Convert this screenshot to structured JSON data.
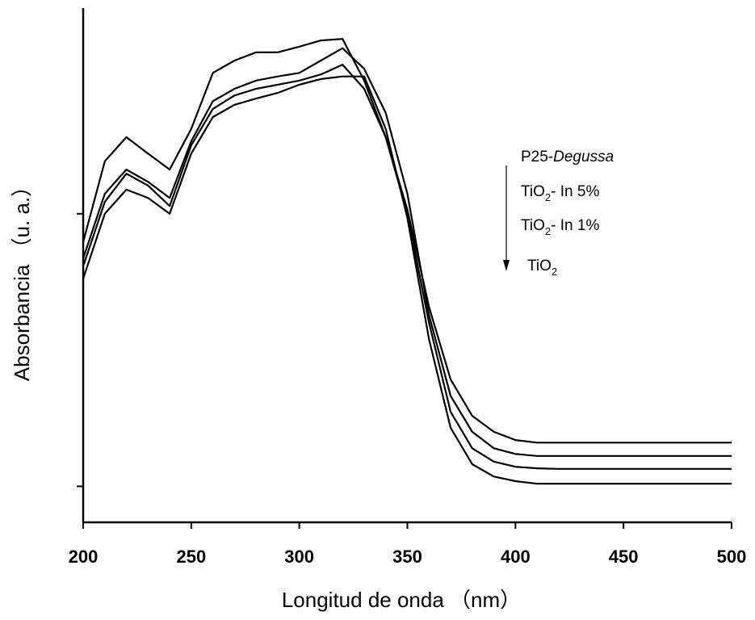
{
  "chart_data": {
    "type": "line",
    "x_label": "Longitud de onda （nm）",
    "y_label": "Absorbancia （u. a.）",
    "x": [
      200,
      210,
      220,
      230,
      240,
      250,
      260,
      270,
      280,
      290,
      300,
      310,
      320,
      330,
      340,
      350,
      360,
      370,
      380,
      390,
      400,
      410,
      420,
      430,
      440,
      450,
      460,
      470,
      480,
      490,
      500
    ],
    "series": [
      {
        "name": "P25-Degussa",
        "color": "#000000",
        "values": [
          0.545,
          0.702,
          0.749,
          0.717,
          0.686,
          0.765,
          0.874,
          0.898,
          0.914,
          0.914,
          0.925,
          0.937,
          0.94,
          0.859,
          0.749,
          0.608,
          0.419,
          0.278,
          0.207,
          0.176,
          0.16,
          0.155,
          0.155,
          0.155,
          0.155,
          0.155,
          0.155,
          0.155,
          0.155,
          0.155,
          0.155
        ]
      },
      {
        "name": "TiO2- In 5%",
        "color": "#000000",
        "values": [
          0.513,
          0.639,
          0.686,
          0.662,
          0.631,
          0.741,
          0.819,
          0.843,
          0.859,
          0.867,
          0.874,
          0.898,
          0.922,
          0.882,
          0.796,
          0.639,
          0.403,
          0.246,
          0.176,
          0.144,
          0.133,
          0.129,
          0.129,
          0.129,
          0.129,
          0.129,
          0.129,
          0.129,
          0.129,
          0.129,
          0.129
        ]
      },
      {
        "name": "TiO2- In 1%",
        "color": "#000000",
        "values": [
          0.498,
          0.623,
          0.678,
          0.655,
          0.615,
          0.733,
          0.804,
          0.83,
          0.843,
          0.851,
          0.859,
          0.871,
          0.89,
          0.843,
          0.749,
          0.6,
          0.388,
          0.215,
          0.144,
          0.118,
          0.108,
          0.105,
          0.104,
          0.104,
          0.104,
          0.104,
          0.104,
          0.104,
          0.104,
          0.104,
          0.104
        ]
      },
      {
        "name": "TiO2",
        "color": "#000000",
        "values": [
          0.474,
          0.6,
          0.647,
          0.631,
          0.6,
          0.717,
          0.788,
          0.812,
          0.824,
          0.835,
          0.851,
          0.862,
          0.867,
          0.867,
          0.765,
          0.592,
          0.356,
          0.184,
          0.113,
          0.089,
          0.08,
          0.075,
          0.075,
          0.075,
          0.075,
          0.075,
          0.075,
          0.075,
          0.075,
          0.075,
          0.075
        ]
      }
    ],
    "xlim": [
      200,
      500
    ],
    "xticks": [
      200,
      250,
      300,
      350,
      400,
      450,
      500
    ],
    "ylim": [
      0,
      1
    ],
    "yticks": [
      0.07,
      0.6
    ],
    "grid": false
  }
}
